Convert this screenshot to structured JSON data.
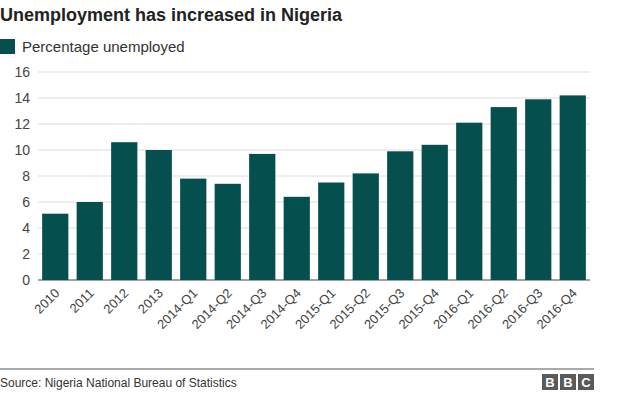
{
  "chart_data": {
    "type": "bar",
    "title": "Unemployment has increased in Nigeria",
    "categories": [
      "2010",
      "2011",
      "2012",
      "2013",
      "2014-Q1",
      "2014-Q2",
      "2014-Q3",
      "2014-Q4",
      "2015-Q1",
      "2015-Q2",
      "2015-Q3",
      "2015-Q4",
      "2016-Q1",
      "2016-Q2",
      "2016-Q3",
      "2016-Q4"
    ],
    "series": [
      {
        "name": "Percentage unemployed",
        "color": "#064f4f",
        "values": [
          5.1,
          6.0,
          10.6,
          10.0,
          7.8,
          7.4,
          9.7,
          6.4,
          7.5,
          8.2,
          9.9,
          10.4,
          12.1,
          13.3,
          13.9,
          14.2
        ]
      }
    ],
    "ylim": [
      0,
      16
    ],
    "yticks": [
      0,
      2,
      4,
      6,
      8,
      10,
      12,
      14,
      16
    ],
    "grid": true,
    "legend": "top-left",
    "source": "Source: Nigeria National Bureau of Statistics",
    "logo": "BBC"
  }
}
